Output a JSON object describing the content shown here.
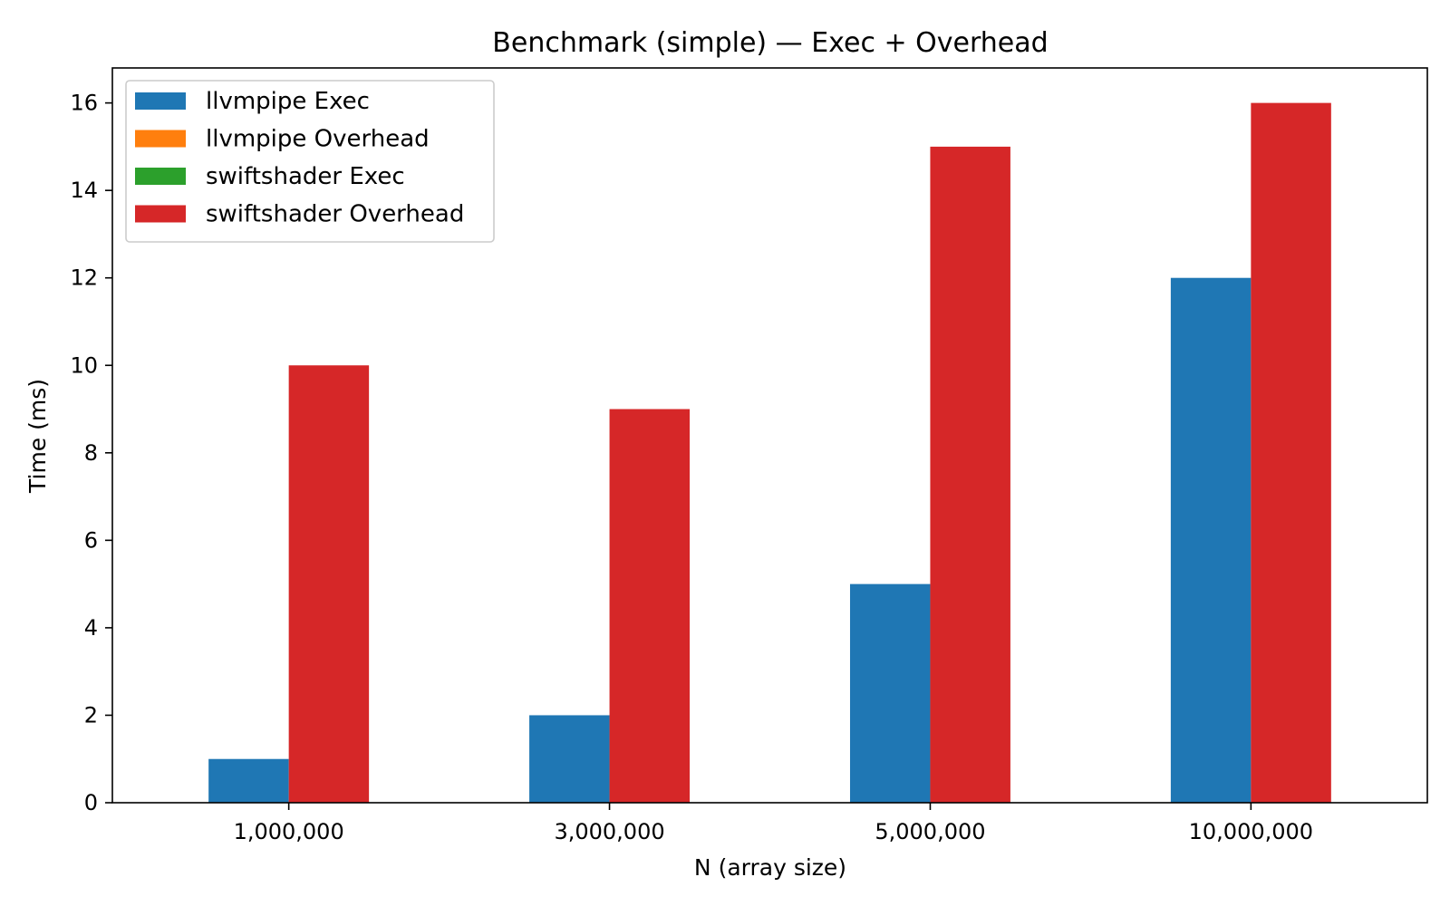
{
  "chart_data": {
    "type": "bar",
    "title": "Benchmark (simple) — Exec + Overhead",
    "xlabel": "N (array size)",
    "ylabel": "Time (ms)",
    "categories": [
      "1,000,000",
      "3,000,000",
      "5,000,000",
      "10,000,000"
    ],
    "ylim": [
      0,
      16.8
    ],
    "yticks": [
      0,
      2,
      4,
      6,
      8,
      10,
      12,
      14,
      16
    ],
    "grid": false,
    "legend_position": "top-left",
    "series": [
      {
        "name": "llvmpipe Exec",
        "color": "#1f77b4",
        "values": [
          1,
          2,
          5,
          12
        ]
      },
      {
        "name": "llvmpipe Overhead",
        "color": "#ff7f0e",
        "values": [
          0,
          0,
          0,
          0
        ]
      },
      {
        "name": "swiftshader Exec",
        "color": "#2ca02c",
        "values": [
          0,
          0,
          0,
          0
        ]
      },
      {
        "name": "swiftshader Overhead",
        "color": "#d62728",
        "values": [
          10,
          9,
          15,
          16
        ]
      }
    ]
  }
}
